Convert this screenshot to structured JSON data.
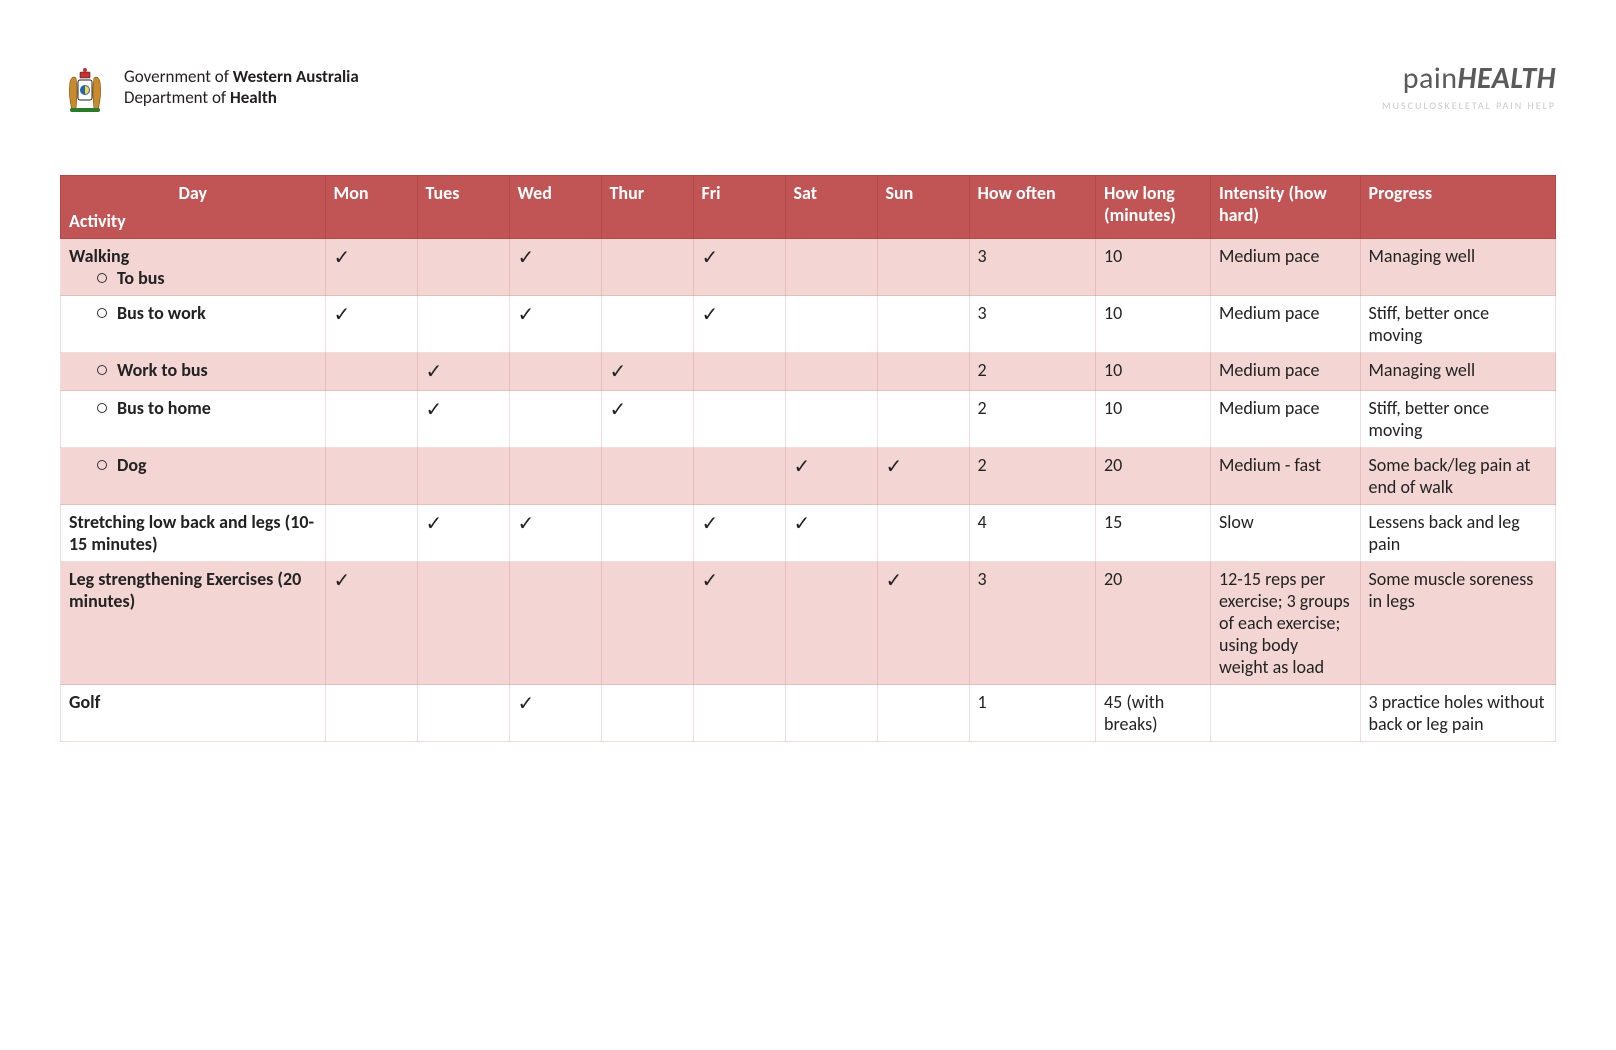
{
  "header": {
    "gov_line1_pre": "Government of ",
    "gov_line1_bold": "Western Australia",
    "gov_line2": "Department of ",
    "gov_line2_bold": "Health",
    "brand_thin": "pain",
    "brand_bold": "HEALTH",
    "brand_tag": "MUSCULOSKELETAL PAIN HELP"
  },
  "table": {
    "header_bg": "#c15454",
    "row_pink": "#f3d6d4",
    "row_white": "#ffffff",
    "columns": {
      "day": "Day",
      "activity": "Activity",
      "mon": "Mon",
      "tue": "Tues",
      "wed": "Wed",
      "thu": "Thur",
      "fri": "Fri",
      "sat": "Sat",
      "sun": "Sun",
      "often": "How often",
      "long": "How long (minutes)",
      "intensity": "Intensity (how hard)",
      "progress": "Progress"
    },
    "tick": "✓",
    "rows": [
      {
        "shade": "pink",
        "activity_main": "Walking",
        "activity_sub": "To bus",
        "is_sub": true,
        "has_main": true,
        "days": {
          "mon": true,
          "tue": false,
          "wed": true,
          "thu": false,
          "fri": true,
          "sat": false,
          "sun": false
        },
        "often": "3",
        "long": "10",
        "intensity": "Medium pace",
        "progress": "Managing well"
      },
      {
        "shade": "white",
        "activity_sub": "Bus to work",
        "is_sub": true,
        "days": {
          "mon": true,
          "tue": false,
          "wed": true,
          "thu": false,
          "fri": true,
          "sat": false,
          "sun": false
        },
        "often": "3",
        "long": "10",
        "intensity": "Medium pace",
        "progress": "Stiff, better once moving"
      },
      {
        "shade": "pink",
        "activity_sub": "Work to bus",
        "is_sub": true,
        "days": {
          "mon": false,
          "tue": true,
          "wed": false,
          "thu": true,
          "fri": false,
          "sat": false,
          "sun": false
        },
        "often": "2",
        "long": "10",
        "intensity": "Medium pace",
        "progress": "Managing well"
      },
      {
        "shade": "white",
        "activity_sub": "Bus to home",
        "is_sub": true,
        "days": {
          "mon": false,
          "tue": true,
          "wed": false,
          "thu": true,
          "fri": false,
          "sat": false,
          "sun": false
        },
        "often": "2",
        "long": "10",
        "intensity": "Medium pace",
        "progress": "Stiff, better once moving"
      },
      {
        "shade": "pink",
        "activity_sub": "Dog",
        "is_sub": true,
        "days": {
          "mon": false,
          "tue": false,
          "wed": false,
          "thu": false,
          "fri": false,
          "sat": true,
          "sun": true
        },
        "often": "2",
        "long": "20",
        "intensity": "Medium - fast",
        "progress": "Some back/leg pain at end of walk"
      },
      {
        "shade": "white",
        "activity_main": "Stretching low back and legs (10-15 minutes)",
        "is_sub": false,
        "days": {
          "mon": false,
          "tue": true,
          "wed": true,
          "thu": false,
          "fri": true,
          "sat": true,
          "sun": false
        },
        "often": "4",
        "long": "15",
        "intensity": "Slow",
        "progress": "Lessens back and leg pain"
      },
      {
        "shade": "pink",
        "activity_main": "Leg strengthening Exercises (20 minutes)",
        "is_sub": false,
        "days": {
          "mon": true,
          "tue": false,
          "wed": false,
          "thu": false,
          "fri": true,
          "sat": false,
          "sun": true
        },
        "often": "3",
        "long": "20",
        "intensity": "12-15 reps per exercise; 3 groups of each exercise; using body weight as load",
        "progress": "Some muscle soreness in legs"
      },
      {
        "shade": "white",
        "activity_main": "Golf",
        "is_sub": false,
        "days": {
          "mon": false,
          "tue": false,
          "wed": true,
          "thu": false,
          "fri": false,
          "sat": false,
          "sun": false
        },
        "often": "1",
        "long": "45 (with breaks)",
        "intensity": "",
        "progress": "3 practice holes without back or leg pain"
      }
    ]
  }
}
